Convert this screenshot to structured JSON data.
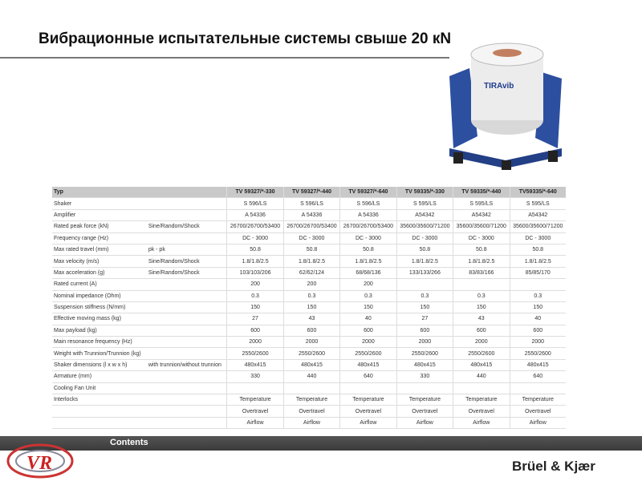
{
  "header": {
    "title": "Вибрационные испытательные системы свыше 20 кN",
    "brand": "TIRAvib"
  },
  "table": {
    "header": [
      "Typ",
      null,
      "TV 59327/*-330",
      "TV 59327/*-440",
      "TV 59327/*-640",
      "TV 59335/*-330",
      "TV 59335/*-440",
      "TV59335/*-640"
    ],
    "rows": [
      [
        "Shaker",
        null,
        "S 596/LS",
        "S 596/LS",
        "S 596/LS",
        "S 595/LS",
        "S 595/LS",
        "S 595/LS"
      ],
      [
        "Amplifier",
        null,
        "A 54336",
        "A 54336",
        "A 54336",
        "A54342",
        "A54342",
        "A54342"
      ],
      [
        "Rated peak force (kN)",
        "Sine/Random/Shock",
        "26700/26700/53400",
        "26700/26700/53400",
        "26700/26700/53400",
        "35600/35600/71200",
        "35600/35600/71200",
        "35600/35600/71200"
      ],
      [
        "Frequency range (Hz)",
        null,
        "DC - 3000",
        "DC - 3000",
        "DC - 3000",
        "DC - 3000",
        "DC - 3000",
        "DC - 3000"
      ],
      [
        "Max rated travel (mm)",
        "pk - pk",
        "50.8",
        "50.8",
        "50.8",
        "50.8",
        "50.8",
        "50.8"
      ],
      [
        "Max velocity (m/s)",
        "Sine/Random/Shock",
        "1.8/1.8/2.5",
        "1.8/1.8/2.5",
        "1.8/1.8/2.5",
        "1.8/1.8/2.5",
        "1.8/1.8/2.5",
        "1.8/1.8/2.5"
      ],
      [
        "Max acceleration (g)",
        "Sine/Random/Shock",
        "103/103/206",
        "62/62/124",
        "68/68/136",
        "133/133/266",
        "83/83/166",
        "85/85/170"
      ],
      [
        "Rated current (A)",
        null,
        "200",
        "200",
        "200",
        null,
        null,
        null
      ],
      [
        "Nominal impedance (Ohm)",
        null,
        "0.3",
        "0.3",
        "0.3",
        "0.3",
        "0.3",
        "0.3"
      ],
      [
        "Suspension stiffness (N/mm)",
        null,
        "150",
        "150",
        "150",
        "150",
        "150",
        "150"
      ],
      [
        "Effective moving mass (kg)",
        null,
        "27",
        "43",
        "40",
        "27",
        "43",
        "40"
      ],
      [
        "Max payload (kg)",
        null,
        "600",
        "600",
        "600",
        "600",
        "600",
        "600"
      ],
      [
        "Main resonance frequency (Hz)",
        null,
        "2000",
        "2000",
        "2000",
        "2000",
        "2000",
        "2000"
      ],
      [
        "Weight with Trunnion/Trunnion (kg)",
        null,
        "2550/2600",
        "2550/2600",
        "2550/2600",
        "2550/2600",
        "2550/2600",
        "2550/2600"
      ],
      [
        "Shaker dimensions (l x w x h)",
        "with trunnion/without trunnion",
        "480x415",
        "480x415",
        "480x415",
        "480x415",
        "480x415",
        "480x415"
      ],
      [
        "Armature (mm)",
        null,
        "330",
        "440",
        "640",
        "330",
        "440",
        "640"
      ],
      [
        "Cooling Fan Unit",
        null,
        null,
        null,
        null,
        null,
        null,
        null
      ],
      [
        "Interlocks",
        null,
        "Temperature",
        "Temperature",
        "Temperature",
        "Temperature",
        "Temperature",
        "Temperature"
      ],
      [
        null,
        null,
        "Overtravel",
        "Overtravel",
        "Overtravel",
        "Overtravel",
        "Overtravel",
        "Overtravel"
      ],
      [
        null,
        null,
        "Airflow",
        "Airflow",
        "Airflow",
        "Airflow",
        "Airflow",
        "Airflow"
      ]
    ]
  },
  "footer": {
    "link": "Contents",
    "logo": "VR",
    "company": "Brüel & Kjær"
  }
}
